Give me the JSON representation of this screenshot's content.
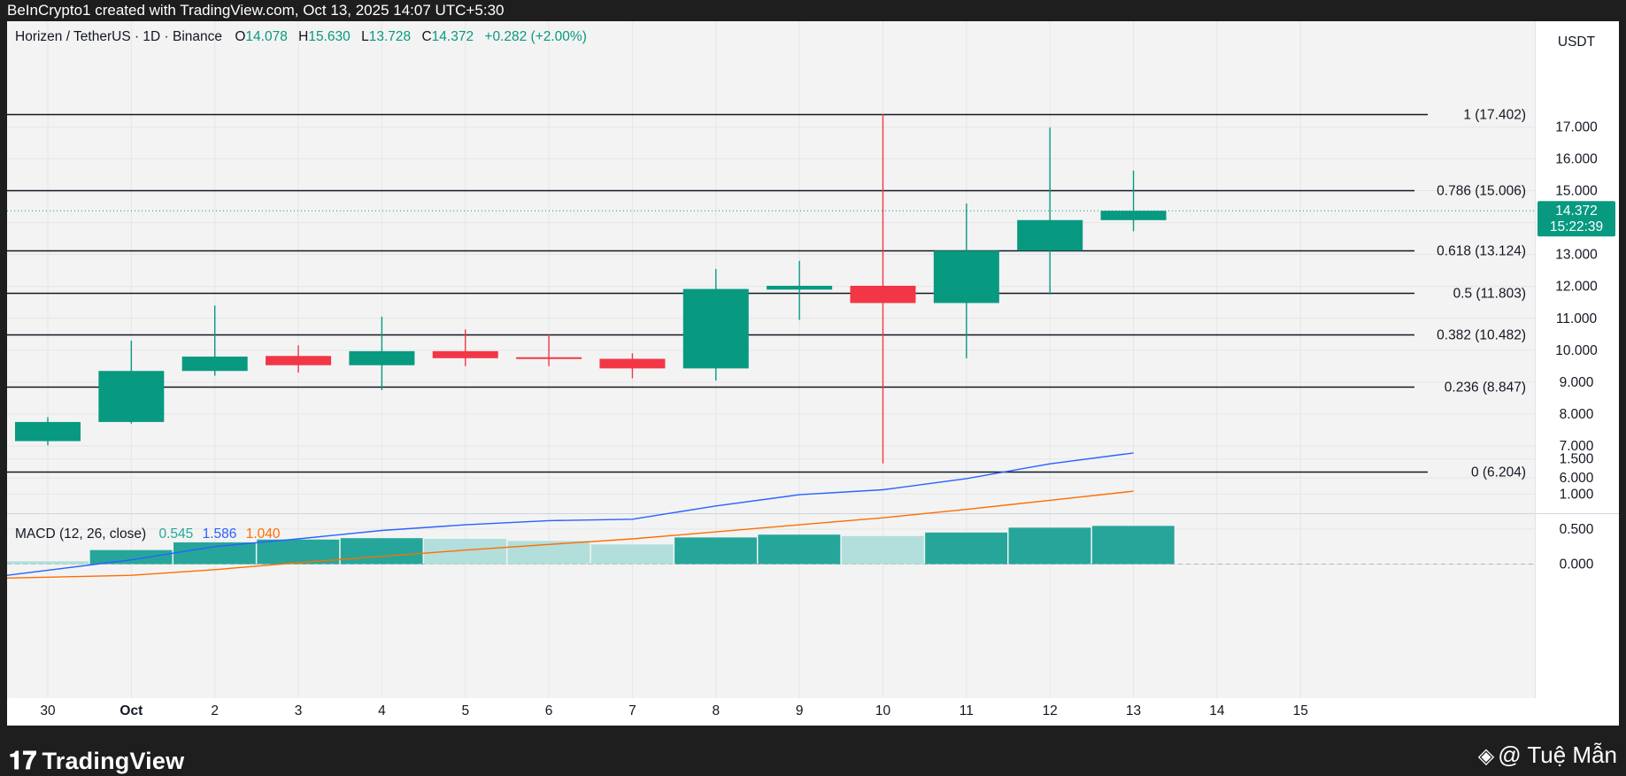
{
  "header": {
    "created_line": "BeInCrypto1 created with TradingView.com, Oct 13, 2025 14:07 UTC+5:30"
  },
  "footer": {
    "brand": "TradingView",
    "author": "@ Tuệ Mẫn"
  },
  "legend": {
    "symbol": "Horizen / TetherUS · 1D · Binance",
    "o_label": "O",
    "o_value": "14.078",
    "h_label": "H",
    "h_value": "15.630",
    "l_label": "L",
    "l_value": "13.728",
    "c_label": "C",
    "c_value": "14.372",
    "change": "+0.282 (+2.00%)"
  },
  "price_axis": {
    "unit": "USDT",
    "current_price": "14.372",
    "countdown": "15:22:39"
  },
  "macd_legend": {
    "name": "MACD (12, 26, close)",
    "hist": "0.545",
    "macd": "1.586",
    "signal": "1.040"
  },
  "colors": {
    "up": "#089981",
    "down": "#f23645",
    "macd_line": "#2962ff",
    "signal_line": "#ff6d00",
    "hist_strong": "#26a69a",
    "hist_weak": "#b2dfdb",
    "pane_bg": "#f3f3f3"
  },
  "chart_data": [
    {
      "type": "candlestick",
      "title": "Horizen / TetherUS · 1D · Binance",
      "ylabel": "USDT",
      "ylim": [
        6.0,
        17.5
      ],
      "y_ticks": [
        "6.000",
        "7.000",
        "8.000",
        "9.000",
        "10.000",
        "11.000",
        "12.000",
        "13.000",
        "14.000",
        "15.000",
        "16.000",
        "17.000"
      ],
      "x_ticks": [
        "30",
        "Oct",
        "2",
        "3",
        "4",
        "5",
        "6",
        "7",
        "8",
        "9",
        "10",
        "11",
        "12",
        "13",
        "14",
        "15"
      ],
      "candles": [
        {
          "x": "30",
          "open": 7.15,
          "high": 7.9,
          "low": 7.02,
          "close": 7.75
        },
        {
          "x": "Oct",
          "open": 7.75,
          "high": 10.3,
          "low": 7.7,
          "close": 9.35
        },
        {
          "x": "2",
          "open": 9.35,
          "high": 11.4,
          "low": 9.2,
          "close": 9.8
        },
        {
          "x": "3",
          "open": 9.82,
          "high": 10.15,
          "low": 9.3,
          "close": 9.53
        },
        {
          "x": "4",
          "open": 9.53,
          "high": 11.05,
          "low": 8.75,
          "close": 9.97
        },
        {
          "x": "5",
          "open": 9.97,
          "high": 10.65,
          "low": 9.5,
          "close": 9.75
        },
        {
          "x": "6",
          "open": 9.78,
          "high": 10.5,
          "low": 9.5,
          "close": 9.73
        },
        {
          "x": "7",
          "open": 9.73,
          "high": 9.9,
          "low": 9.12,
          "close": 9.43
        },
        {
          "x": "8",
          "open": 9.43,
          "high": 12.55,
          "low": 9.05,
          "close": 11.92
        },
        {
          "x": "9",
          "open": 11.9,
          "high": 12.8,
          "low": 10.95,
          "close": 12.02
        },
        {
          "x": "10",
          "open": 12.02,
          "high": 17.4,
          "low": 6.45,
          "close": 11.48
        },
        {
          "x": "11",
          "open": 11.48,
          "high": 14.6,
          "low": 9.75,
          "close": 13.12
        },
        {
          "x": "12",
          "open": 13.12,
          "high": 16.98,
          "low": 11.75,
          "close": 14.08
        },
        {
          "x": "13",
          "open": 14.078,
          "high": 15.63,
          "low": 13.728,
          "close": 14.372
        }
      ],
      "fib_levels": [
        {
          "label": "1 (17.402)",
          "value": 17.402
        },
        {
          "label": "0.786 (15.006)",
          "value": 15.006
        },
        {
          "label": "0.618 (13.124)",
          "value": 13.124
        },
        {
          "label": "0.5 (11.803)",
          "value": 11.803
        },
        {
          "label": "0.382 (10.482)",
          "value": 10.482
        },
        {
          "label": "0.236 (8.847)",
          "value": 8.847
        },
        {
          "label": "0 (6.204)",
          "value": 6.204
        }
      ],
      "current_price": 14.372
    },
    {
      "type": "macd",
      "title": "MACD (12, 26, close)",
      "ylim": [
        -0.22,
        1.82
      ],
      "y_ticks": [
        "0.000",
        "0.500",
        "1.000",
        "1.500"
      ],
      "x": [
        "30",
        "Oct",
        "2",
        "3",
        "4",
        "5",
        "6",
        "7",
        "8",
        "9",
        "10",
        "11",
        "12",
        "13"
      ],
      "series": [
        {
          "name": "macd",
          "values": [
            -0.16,
            0.06,
            0.25,
            0.36,
            0.48,
            0.56,
            0.62,
            0.64,
            0.83,
            0.99,
            1.06,
            1.22,
            1.43,
            1.586
          ]
        },
        {
          "name": "signal",
          "values": [
            -0.2,
            -0.16,
            -0.08,
            0.02,
            0.11,
            0.2,
            0.28,
            0.36,
            0.46,
            0.56,
            0.66,
            0.78,
            0.91,
            1.04
          ]
        }
      ],
      "histogram": [
        {
          "value": 0.04,
          "strength": "weak"
        },
        {
          "value": 0.2,
          "strength": "strong"
        },
        {
          "value": 0.31,
          "strength": "strong"
        },
        {
          "value": 0.35,
          "strength": "strong"
        },
        {
          "value": 0.37,
          "strength": "strong"
        },
        {
          "value": 0.36,
          "strength": "weak"
        },
        {
          "value": 0.33,
          "strength": "weak"
        },
        {
          "value": 0.28,
          "strength": "weak"
        },
        {
          "value": 0.38,
          "strength": "strong"
        },
        {
          "value": 0.42,
          "strength": "strong"
        },
        {
          "value": 0.4,
          "strength": "weak"
        },
        {
          "value": 0.45,
          "strength": "strong"
        },
        {
          "value": 0.52,
          "strength": "strong"
        },
        {
          "value": 0.545,
          "strength": "strong"
        }
      ]
    }
  ]
}
